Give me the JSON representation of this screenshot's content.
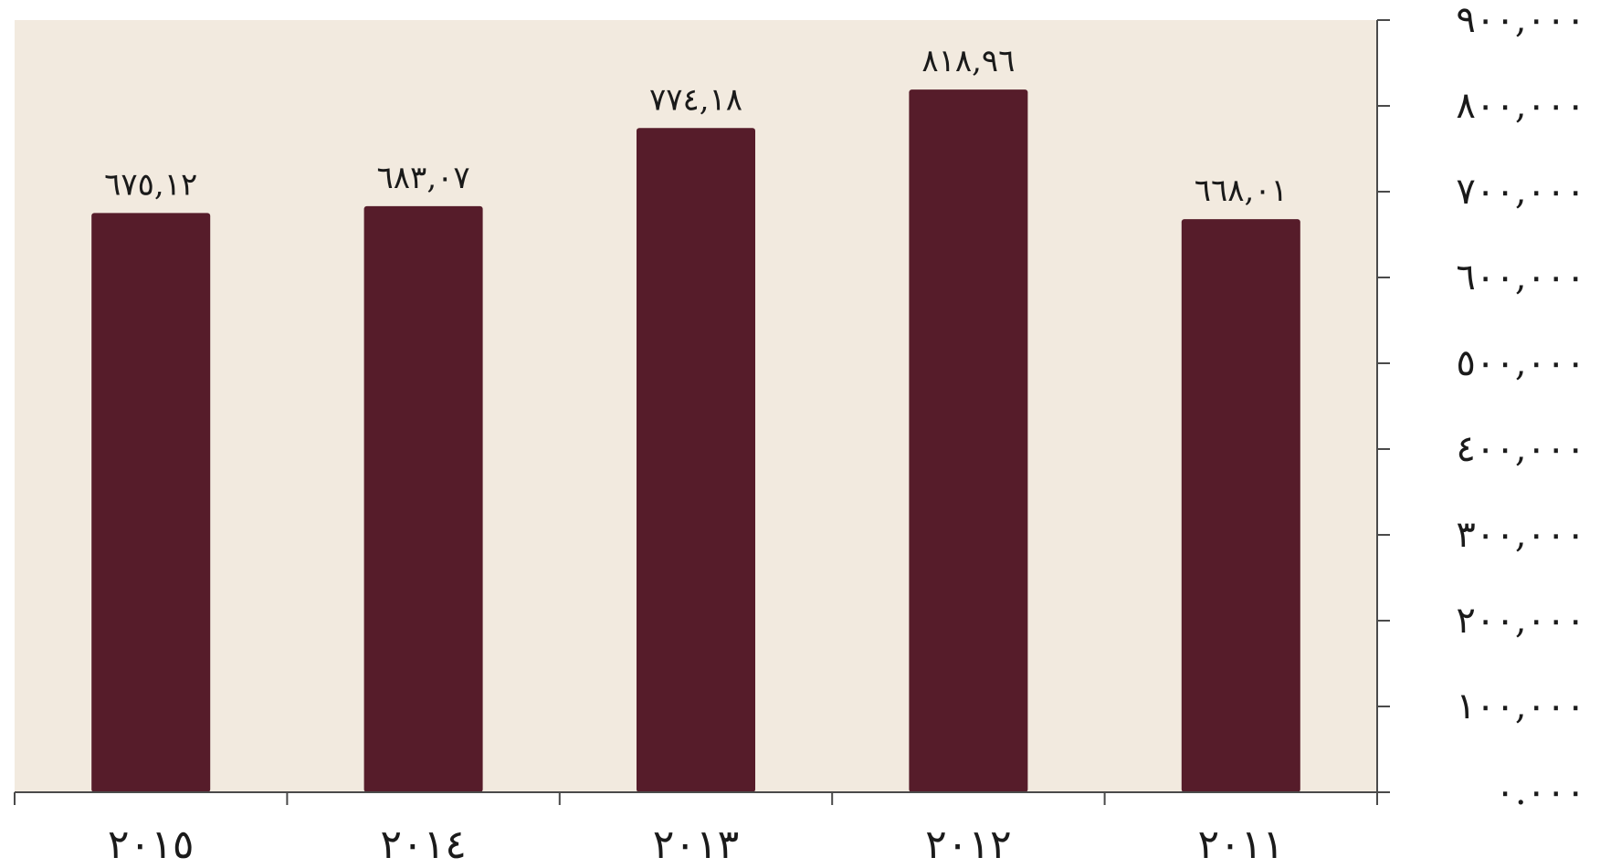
{
  "chart_data": {
    "type": "bar",
    "categories": [
      "٢٠١٥",
      "٢٠١٤",
      "٢٠١٣",
      "٢٠١٢",
      "٢٠١١"
    ],
    "values": [
      675.12,
      683.07,
      774.18,
      818.96,
      668.01
    ],
    "value_labels": [
      "٦٧٥,١٢",
      "٦٨٣,٠٧",
      "٧٧٤,١٨",
      "٨١٨,٩٦",
      "٦٦٨,٠١"
    ],
    "y_ticks": [
      0,
      100,
      200,
      300,
      400,
      500,
      600,
      700,
      800,
      900
    ],
    "y_tick_labels": [
      "٠.٠٠٠",
      "١٠٠,٠٠٠",
      "٢٠٠,٠٠٠",
      "٣٠٠,٠٠٠",
      "٤٠٠,٠٠٠",
      "٥٠٠,٠٠٠",
      "٦٠٠,٠٠٠",
      "٧٠٠,٠٠٠",
      "٨٠٠,٠٠٠",
      "٩٠٠,٠٠٠"
    ],
    "ylim": [
      0,
      900
    ],
    "title": "",
    "xlabel": "",
    "ylabel": "",
    "y_axis_side": "right",
    "grid": false,
    "colors": {
      "bar": "#561c2a",
      "plot_background": "#f2eadf",
      "axis": "#4a4a4a"
    }
  }
}
